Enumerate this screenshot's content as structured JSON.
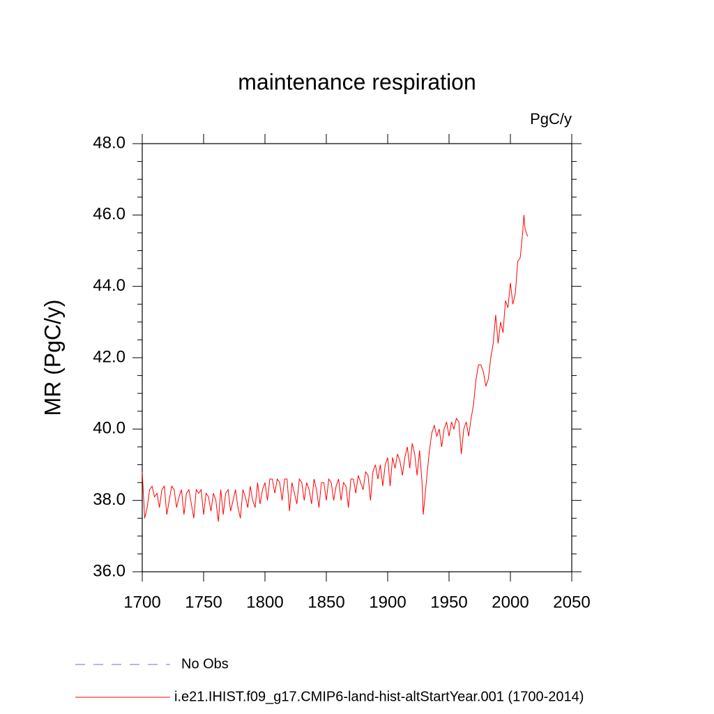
{
  "chart_data": {
    "type": "line",
    "title": "maintenance respiration",
    "units_label": "PgC/y",
    "y_label": "MR  (PgC/y)",
    "x": [
      1700,
      1702,
      1704,
      1706,
      1708,
      1710,
      1712,
      1714,
      1716,
      1718,
      1720,
      1722,
      1724,
      1726,
      1728,
      1730,
      1732,
      1734,
      1736,
      1738,
      1740,
      1742,
      1744,
      1746,
      1748,
      1750,
      1752,
      1754,
      1756,
      1758,
      1760,
      1762,
      1764,
      1766,
      1768,
      1770,
      1772,
      1774,
      1776,
      1778,
      1780,
      1782,
      1784,
      1786,
      1788,
      1790,
      1792,
      1794,
      1796,
      1798,
      1800,
      1802,
      1804,
      1806,
      1808,
      1810,
      1812,
      1814,
      1816,
      1818,
      1820,
      1822,
      1824,
      1826,
      1828,
      1830,
      1832,
      1834,
      1836,
      1838,
      1840,
      1842,
      1844,
      1846,
      1848,
      1850,
      1852,
      1854,
      1856,
      1858,
      1860,
      1862,
      1864,
      1866,
      1868,
      1870,
      1872,
      1874,
      1876,
      1878,
      1880,
      1882,
      1884,
      1886,
      1888,
      1890,
      1892,
      1894,
      1896,
      1898,
      1900,
      1902,
      1904,
      1906,
      1908,
      1910,
      1912,
      1914,
      1916,
      1918,
      1920,
      1922,
      1924,
      1926,
      1928,
      1929,
      1932,
      1934,
      1936,
      1938,
      1940,
      1942,
      1944,
      1946,
      1948,
      1950,
      1952,
      1954,
      1956,
      1958,
      1960,
      1962,
      1964,
      1966,
      1968,
      1970,
      1972,
      1974,
      1976,
      1978,
      1980,
      1982,
      1984,
      1986,
      1988,
      1990,
      1992,
      1994,
      1996,
      1998,
      2000,
      2002,
      2004,
      2006,
      2008,
      2010,
      2011,
      2012,
      2014
    ],
    "series": [
      {
        "name": "i.e21.IHIST.f09_g17.CMIP6-land-hist-altStartYear.001 (1700-2014)",
        "color": "#ff0000",
        "values": [
          38.8,
          37.5,
          37.8,
          38.3,
          38.4,
          38.1,
          38.2,
          37.8,
          38.3,
          38.4,
          37.6,
          38.0,
          38.4,
          38.3,
          37.8,
          38.1,
          38.3,
          37.6,
          38.2,
          38.3,
          37.9,
          37.5,
          38.3,
          38.2,
          38.3,
          37.6,
          38.2,
          38.1,
          37.7,
          38.2,
          38.0,
          37.4,
          38.3,
          37.6,
          38.2,
          38.3,
          37.7,
          38.0,
          38.3,
          37.8,
          37.5,
          38.3,
          38.1,
          37.8,
          38.4,
          38.0,
          37.8,
          38.5,
          37.9,
          38.3,
          38.5,
          38.0,
          38.6,
          38.6,
          38.2,
          38.6,
          38.5,
          38.0,
          38.6,
          38.6,
          37.7,
          38.5,
          38.2,
          37.9,
          38.6,
          38.5,
          38.0,
          38.5,
          38.3,
          37.9,
          38.6,
          38.3,
          37.8,
          38.5,
          38.5,
          38.0,
          38.6,
          38.5,
          38.0,
          38.4,
          38.6,
          38.0,
          38.5,
          38.4,
          37.8,
          38.6,
          38.6,
          38.2,
          38.7,
          38.5,
          38.3,
          38.8,
          38.7,
          38.0,
          38.8,
          39.0,
          38.6,
          39.0,
          38.4,
          39.0,
          39.2,
          38.4,
          39.2,
          38.9,
          39.3,
          39.1,
          38.7,
          39.2,
          39.5,
          38.9,
          39.6,
          39.3,
          38.7,
          39.4,
          38.5,
          37.6,
          38.7,
          39.4,
          39.9,
          40.1,
          39.8,
          40.0,
          39.5,
          40.0,
          40.2,
          39.8,
          40.2,
          40.0,
          40.3,
          40.2,
          39.3,
          40.0,
          40.2,
          39.8,
          40.3,
          40.7,
          41.4,
          41.8,
          41.8,
          41.6,
          41.2,
          41.4,
          42.0,
          42.4,
          43.2,
          42.4,
          43.0,
          42.7,
          43.6,
          43.4,
          44.1,
          43.5,
          43.8,
          44.7,
          44.8,
          45.5,
          46.0,
          45.6,
          45.4
        ]
      }
    ],
    "legend_extra": {
      "name": "No Obs",
      "color": "#7b68c8",
      "dashed": true
    },
    "xlim": [
      1700,
      2050
    ],
    "xticks": [
      1700,
      1750,
      1800,
      1850,
      1900,
      1950,
      2000,
      2050
    ],
    "ylim": [
      36,
      48
    ],
    "yticks": [
      {
        "value": 36,
        "label": "36.0"
      },
      {
        "value": 38,
        "label": "38.0"
      },
      {
        "value": 40,
        "label": "40.0"
      },
      {
        "value": 42,
        "label": "42.0"
      },
      {
        "value": 44,
        "label": "44.0"
      },
      {
        "value": 46,
        "label": "46.0"
      },
      {
        "value": 48,
        "label": "48.0"
      }
    ],
    "y_minor_ticks": [
      36.5,
      37,
      37.5,
      38.5,
      39,
      39.5,
      40.5,
      41,
      41.5,
      42.5,
      43,
      43.5,
      44.5,
      45,
      45.5,
      46.5,
      47,
      47.5
    ]
  }
}
